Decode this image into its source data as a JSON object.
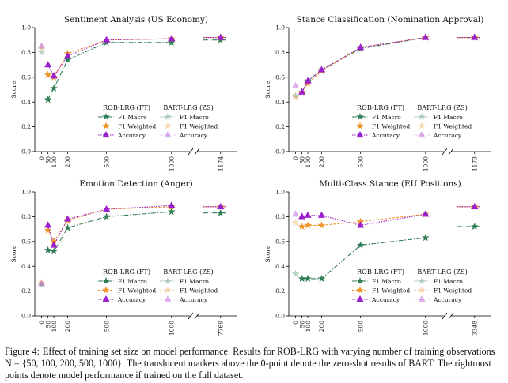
{
  "figure": {
    "y_label": "Score",
    "y_ticks": [
      0.0,
      0.2,
      0.4,
      0.6,
      0.8,
      1.0
    ],
    "x_ticks": [
      0,
      50,
      100,
      200,
      500,
      1000
    ],
    "legend": {
      "ft_title": "ROB-LRG (FT)",
      "zs_title": "BART-LRG (ZS)",
      "items": [
        "F1 Macro",
        "F1 Weighted",
        "Accuracy"
      ]
    },
    "colors": {
      "f1_macro": "#2e7d55",
      "f1_weighted": "#f0952a",
      "accuracy": "#9a1fcf"
    }
  },
  "caption": {
    "label": "Figure 4:",
    "text": "Effect of training set size on model performance: Results for ROB-LRG with varying number of training observations N = {50, 100, 200, 500, 1000}. The translucent markers above the 0-point denote the zero-shot results of BART. The rightmost points denote model performance if trained on the full dataset."
  },
  "chart_data": [
    {
      "type": "line",
      "title": "Sentiment Analysis (US Economy)",
      "ylabel": "Score",
      "ylim": [
        0,
        1
      ],
      "x": [
        50,
        100,
        200,
        500,
        1000
      ],
      "full_n": "1174",
      "series": [
        {
          "name": "F1 Macro",
          "values": [
            0.42,
            0.51,
            0.74,
            0.88,
            0.88
          ],
          "full": 0.9,
          "zs": 0.8
        },
        {
          "name": "F1 Weighted",
          "values": [
            0.62,
            0.6,
            0.79,
            0.9,
            0.91
          ],
          "full": 0.92,
          "zs": 0.84
        },
        {
          "name": "Accuracy",
          "values": [
            0.7,
            0.61,
            0.77,
            0.9,
            0.91
          ],
          "full": 0.92,
          "zs": 0.85
        }
      ]
    },
    {
      "type": "line",
      "title": "Stance Classification (Nomination Approval)",
      "ylabel": "Score",
      "ylim": [
        0,
        1
      ],
      "x": [
        50,
        100,
        200,
        500,
        1000
      ],
      "full_n": "1173",
      "series": [
        {
          "name": "F1 Macro",
          "values": [
            0.48,
            0.57,
            0.66,
            0.83,
            0.92
          ],
          "full": 0.92,
          "zs": 0.45
        },
        {
          "name": "F1 Weighted",
          "values": [
            0.48,
            0.55,
            0.65,
            0.84,
            0.92
          ],
          "full": 0.92,
          "zs": 0.44
        },
        {
          "name": "Accuracy",
          "values": [
            0.48,
            0.57,
            0.66,
            0.84,
            0.92
          ],
          "full": 0.92,
          "zs": 0.53
        }
      ]
    },
    {
      "type": "line",
      "title": "Emotion Detection (Anger)",
      "ylabel": "Score",
      "ylim": [
        0,
        1
      ],
      "x": [
        50,
        100,
        200,
        500,
        1000
      ],
      "full_n": "7769",
      "series": [
        {
          "name": "F1 Macro",
          "values": [
            0.53,
            0.52,
            0.71,
            0.8,
            0.84
          ],
          "full": 0.83,
          "zs": 0.25
        },
        {
          "name": "F1 Weighted",
          "values": [
            0.69,
            0.6,
            0.77,
            0.86,
            0.88
          ],
          "full": 0.88,
          "zs": 0.27
        },
        {
          "name": "Accuracy",
          "values": [
            0.73,
            0.57,
            0.78,
            0.86,
            0.89
          ],
          "full": 0.88,
          "zs": 0.26
        }
      ]
    },
    {
      "type": "line",
      "title": "Multi-Class Stance (EU Positions)",
      "ylabel": "Score",
      "ylim": [
        0,
        1
      ],
      "x": [
        50,
        100,
        200,
        500,
        1000
      ],
      "full_n": "3348",
      "series": [
        {
          "name": "F1 Macro",
          "values": [
            0.3,
            0.3,
            0.3,
            0.57,
            0.63
          ],
          "full": 0.72,
          "zs": 0.34
        },
        {
          "name": "F1 Weighted",
          "values": [
            0.72,
            0.73,
            0.73,
            0.76,
            0.82
          ],
          "full": 0.88,
          "zs": 0.75
        },
        {
          "name": "Accuracy",
          "values": [
            0.8,
            0.81,
            0.81,
            0.73,
            0.82
          ],
          "full": 0.88,
          "zs": 0.82
        }
      ]
    }
  ]
}
